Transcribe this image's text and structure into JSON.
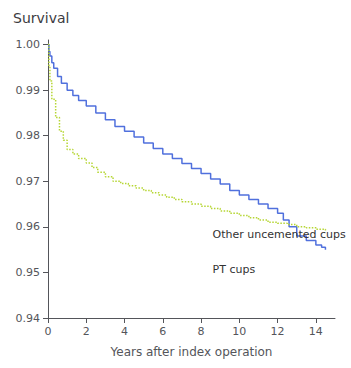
{
  "chart_data": {
    "type": "step",
    "title": "Survival",
    "xlabel": "Years after index operation",
    "xlim": [
      0,
      15
    ],
    "ylim": [
      0.94,
      1.001
    ],
    "xticks": [
      0,
      2,
      4,
      6,
      8,
      10,
      12,
      14
    ],
    "yticks": [
      0.94,
      0.95,
      0.96,
      0.97,
      0.98,
      0.99,
      {
        "value": 1.0,
        "label": "1.00"
      }
    ],
    "grid": false,
    "series": [
      {
        "line_style": "solid",
        "x": [
          0,
          0.05,
          0.1,
          0.2,
          0.3,
          0.5,
          0.7,
          1.0,
          1.3,
          1.6,
          2.0,
          2.5,
          3.0,
          3.5,
          4.0,
          4.5,
          5.0,
          5.5,
          6.0,
          6.5,
          7.0,
          7.5,
          8.0,
          8.5,
          9.0,
          9.5,
          10.0,
          10.5,
          11.0,
          11.5,
          12.0,
          12.3,
          12.6,
          13.0,
          13.5,
          14.0,
          14.3,
          14.5
        ],
        "values": [
          1.0,
          0.9985,
          0.9975,
          0.996,
          0.9948,
          0.993,
          0.9915,
          0.99,
          0.9888,
          0.9877,
          0.9865,
          0.985,
          0.9835,
          0.982,
          0.981,
          0.9797,
          0.9784,
          0.9772,
          0.976,
          0.975,
          0.9739,
          0.9728,
          0.9717,
          0.9705,
          0.9694,
          0.968,
          0.967,
          0.966,
          0.965,
          0.964,
          0.963,
          0.9615,
          0.96,
          0.958,
          0.957,
          0.956,
          0.9555,
          0.955
        ]
      },
      {
        "line_style": "dotted",
        "x": [
          0,
          0.05,
          0.1,
          0.2,
          0.4,
          0.6,
          0.8,
          1.0,
          1.3,
          1.6,
          2.0,
          2.3,
          2.6,
          3.0,
          3.4,
          3.8,
          4.2,
          4.6,
          5.0,
          5.4,
          5.8,
          6.2,
          6.6,
          7.0,
          7.5,
          8.0,
          8.5,
          9.0,
          9.5,
          10.0,
          10.5,
          11.0,
          11.5,
          12.0,
          12.5,
          13.0,
          13.5,
          14.0,
          14.5
        ],
        "values": [
          1.0,
          0.995,
          0.992,
          0.988,
          0.984,
          0.981,
          0.979,
          0.977,
          0.976,
          0.975,
          0.974,
          0.973,
          0.972,
          0.971,
          0.97,
          0.9695,
          0.969,
          0.9685,
          0.968,
          0.9675,
          0.967,
          0.9665,
          0.966,
          0.9655,
          0.965,
          0.9645,
          0.964,
          0.9635,
          0.963,
          0.9625,
          0.962,
          0.9615,
          0.961,
          0.9608,
          0.9605,
          0.96,
          0.9598,
          0.9595,
          0.959
        ]
      }
    ],
    "annotations": [
      {
        "text": "Other uncemented cups",
        "x": 8.6,
        "y": 0.9572
      },
      {
        "text": "PT cups",
        "x": 8.6,
        "y": 0.9518
      }
    ]
  }
}
